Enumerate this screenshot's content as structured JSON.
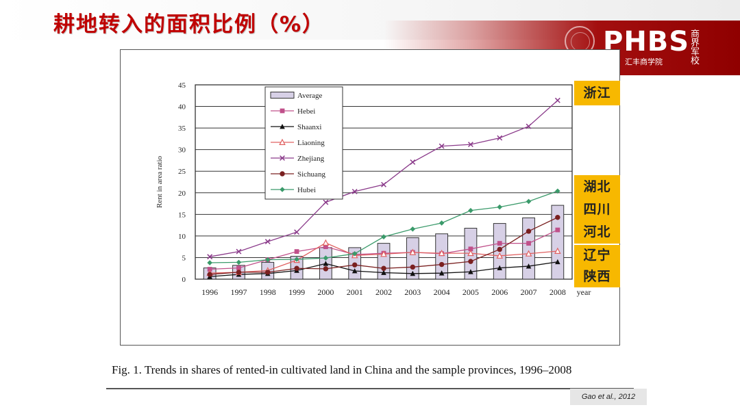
{
  "slide": {
    "title": "耕地转入的面积比例（%）",
    "logo_text": "PHBS",
    "logo_subtitle": "汇丰商学院",
    "logo_calligraphy": "商界军校",
    "colors": {
      "title": "#c00000",
      "brand_red": "#a30f0f",
      "province_highlight": "#f7b800"
    }
  },
  "province_labels": [
    {
      "text": "浙江"
    },
    {
      "text": "湖北"
    },
    {
      "text": "四川"
    },
    {
      "text": "河北"
    },
    {
      "text": "辽宁"
    },
    {
      "text": "陕西"
    }
  ],
  "caption": "Fig. 1.  Trends in shares of rented-in cultivated land in China and the sample provinces, 1996–2008",
  "citation": "Gao et al., 2012",
  "chart_data": {
    "type": "bar",
    "categories": [
      "1996",
      "1997",
      "1998",
      "1999",
      "2000",
      "2001",
      "2002",
      "2003",
      "2004",
      "2005",
      "2006",
      "2007",
      "2008"
    ],
    "xlabel": "year",
    "ylabel": "Rent in area ratio",
    "ylim": [
      0,
      45
    ],
    "yticks": [
      0,
      5,
      10,
      15,
      20,
      25,
      30,
      35,
      40,
      45
    ],
    "grid": true,
    "legend_position": "top-left",
    "series": [
      {
        "name": "Average",
        "kind": "bar",
        "color": "#d7d0e6",
        "values": [
          2.6,
          3.2,
          3.9,
          5.3,
          7.3,
          7.3,
          8.3,
          9.6,
          10.5,
          11.8,
          12.9,
          14.2,
          17.1
        ]
      },
      {
        "name": "Hebei",
        "kind": "line",
        "marker": "square",
        "color": "#c0508a",
        "values": [
          2.3,
          2.6,
          4.5,
          6.4,
          7.5,
          5.7,
          6.0,
          6.2,
          5.9,
          7.0,
          8.3,
          8.3,
          11.4
        ]
      },
      {
        "name": "Shaanxi",
        "kind": "line",
        "marker": "triangle",
        "color": "#111111",
        "values": [
          0.6,
          1.1,
          1.3,
          2.0,
          3.6,
          1.9,
          1.5,
          1.3,
          1.4,
          1.7,
          2.6,
          3.0,
          4.0
        ]
      },
      {
        "name": "Liaoning",
        "kind": "line",
        "marker": "triangle-open",
        "color": "#e06060",
        "values": [
          1.4,
          1.6,
          2.0,
          4.4,
          8.4,
          5.5,
          5.8,
          6.2,
          6.0,
          6.0,
          5.4,
          5.9,
          6.5
        ]
      },
      {
        "name": "Zhejiang",
        "kind": "line",
        "marker": "x",
        "color": "#8a3a8a",
        "values": [
          5.2,
          6.4,
          8.7,
          10.9,
          17.8,
          20.3,
          21.9,
          27.1,
          30.8,
          31.2,
          32.7,
          35.4,
          41.4
        ]
      },
      {
        "name": "Sichuang",
        "kind": "line",
        "marker": "circle",
        "color": "#7a2020",
        "values": [
          1.1,
          1.6,
          1.6,
          2.5,
          2.4,
          3.3,
          2.5,
          2.8,
          3.4,
          4.1,
          6.9,
          11.1,
          14.3
        ]
      },
      {
        "name": "Hubei",
        "kind": "line",
        "marker": "diamond",
        "color": "#3a9a6a",
        "values": [
          3.8,
          3.9,
          4.5,
          4.6,
          4.9,
          5.9,
          9.8,
          11.6,
          13.0,
          15.9,
          16.7,
          18.0,
          20.4
        ]
      }
    ]
  }
}
